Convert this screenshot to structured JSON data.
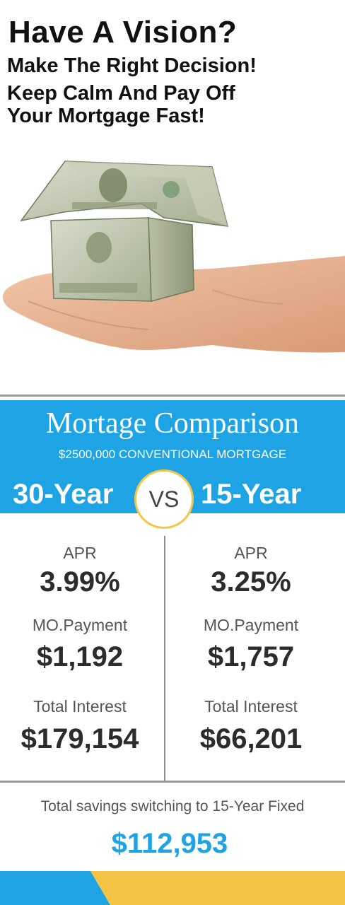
{
  "header": {
    "line1": "Have A Vision?",
    "line2": "Make The Right Decision!",
    "line3": "Keep Calm And Pay Off",
    "line4": "Your Mortgage Fast!"
  },
  "banner": {
    "title": "Mortage Comparison",
    "subtitle": "$2500,000 CONVENTIONAL MORTGAGE",
    "left_term": "30-Year",
    "vs": "VS",
    "right_term": "15-Year"
  },
  "columns": {
    "left": {
      "apr_label": "APR",
      "apr_value": "3.99%",
      "payment_label": "MO.Payment",
      "payment_value": "$1,192",
      "interest_label": "Total Interest",
      "interest_value": "$179,154"
    },
    "right": {
      "apr_label": "APR",
      "apr_value": "3.25%",
      "payment_label": "MO.Payment",
      "payment_value": "$1,757",
      "interest_label": "Total Interest",
      "interest_value": "$66,201"
    }
  },
  "savings": {
    "label": "Total savings switching to 15-Year Fixed",
    "value": "$112,953"
  },
  "colors": {
    "accent_blue": "#1ea4e4",
    "accent_yellow": "#f6c445",
    "money_green": "#a7b58f"
  }
}
